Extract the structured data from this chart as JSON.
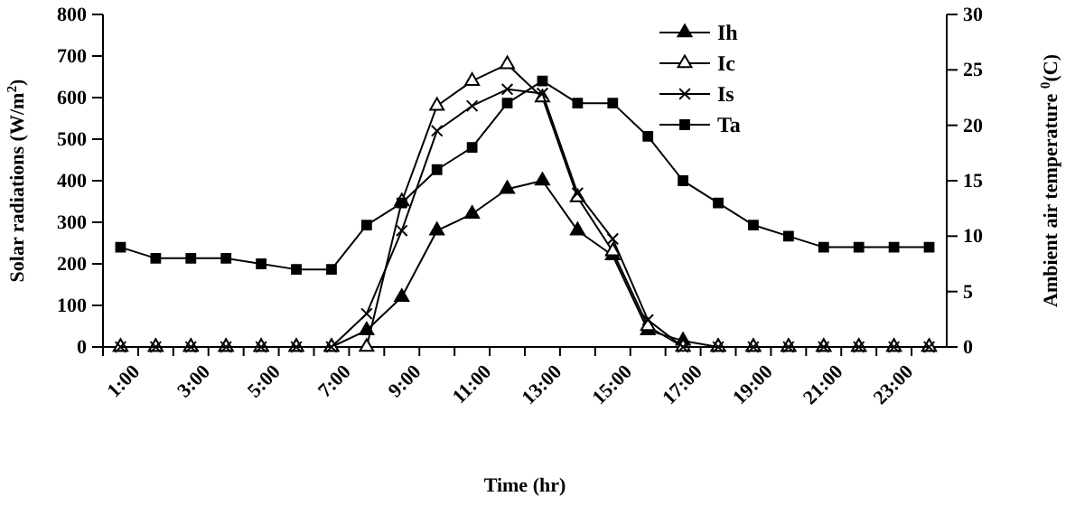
{
  "chart_data": {
    "type": "line",
    "xlabel": "Time (hr)",
    "ylabel": "Solar radiations (W/m$^{2}$)",
    "y2label": "Ambient air temperature $^{0}$(C)",
    "categories": [
      "1:00",
      null,
      "3:00",
      null,
      "5:00",
      null,
      "7:00",
      null,
      "9:00",
      null,
      "11:00",
      null,
      "13:00",
      null,
      "15:00",
      null,
      "17:00",
      null,
      "19:00",
      null,
      "21:00",
      null,
      "23:00",
      null
    ],
    "series": [
      {
        "name": "Ih",
        "color": "#000000",
        "marker": "triangle",
        "values": [
          0,
          0,
          0,
          0,
          0,
          0,
          0,
          40,
          120,
          280,
          320,
          380,
          400,
          280,
          220,
          40,
          15,
          0,
          0,
          0,
          0,
          0,
          0,
          0
        ]
      },
      {
        "name": "Ic",
        "color": "#000000",
        "marker": "triangle",
        "values": [
          0,
          0,
          0,
          0,
          0,
          0,
          0,
          0,
          350,
          580,
          640,
          680,
          600,
          360,
          230,
          50,
          0,
          0,
          0,
          0,
          0,
          0,
          0,
          0
        ]
      },
      {
        "name": "Is",
        "color": "#000000",
        "marker": "cross",
        "values": [
          0,
          0,
          0,
          0,
          0,
          0,
          0,
          80,
          280,
          520,
          580,
          620,
          610,
          370,
          260,
          65,
          0,
          0,
          0,
          0,
          0,
          0,
          0,
          0
        ]
      },
      {
        "name": "Ta",
        "color": "#000000",
        "marker": "square",
        "axis": "y2",
        "values": [
          9,
          8,
          8,
          8,
          7.5,
          7,
          7,
          11,
          13,
          16,
          18,
          22,
          24,
          22,
          22,
          19,
          15,
          13,
          11,
          10,
          9,
          9,
          9,
          9
        ]
      }
    ],
    "ylim": [
      0,
      800
    ],
    "yticks": [
      0,
      100,
      200,
      300,
      400,
      500,
      600,
      700,
      800
    ],
    "y2lim": [
      0,
      30
    ],
    "y2ticks": [
      0,
      5,
      10,
      15,
      20,
      25,
      30
    ],
    "grid": false,
    "legend": "top right",
    "line_style": "solid"
  }
}
